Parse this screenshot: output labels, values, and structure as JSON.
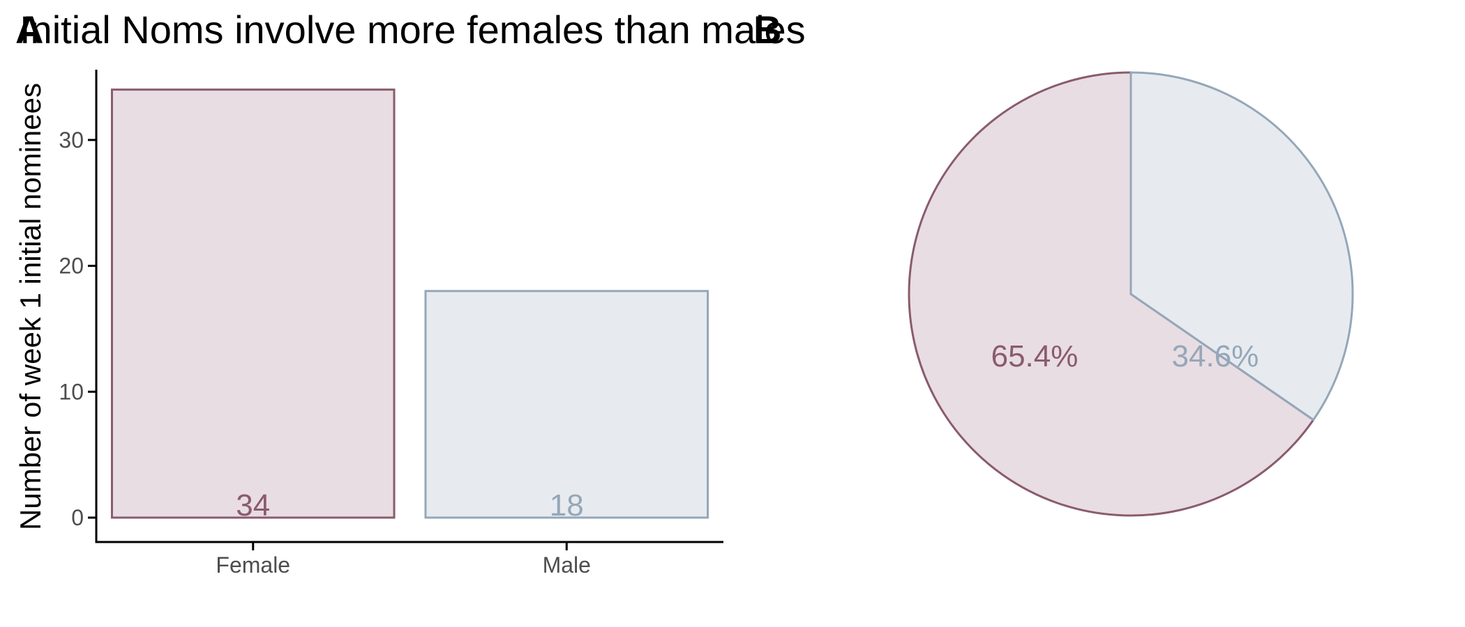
{
  "panel_a": {
    "tag": "A",
    "title": "Initial Noms involve more females than males"
  },
  "panel_b": {
    "tag": "B"
  },
  "colors": {
    "female_fill": "#e8dde2",
    "female_stroke": "#8a5b6e",
    "male_fill": "#e7ebef",
    "male_stroke": "#95a7b9",
    "axis": "#000000"
  },
  "chart_data": [
    {
      "type": "bar",
      "title": "Initial Noms involve more females than males",
      "xlabel": "",
      "ylabel": "Number of week 1 initial nominees",
      "categories": [
        "Female",
        "Male"
      ],
      "values": [
        34,
        18
      ],
      "data_labels": [
        "34",
        "18"
      ],
      "yticks": [
        0,
        10,
        20,
        30
      ],
      "ylim": [
        0,
        35.7
      ],
      "grid": false,
      "legend": "none"
    },
    {
      "type": "pie",
      "categories": [
        "Female",
        "Male"
      ],
      "values": [
        34,
        18
      ],
      "labels": [
        "65.4%",
        "34.6%"
      ],
      "start": "12 o'clock",
      "direction": "Male clockwise from top, Female counter-clockwise"
    }
  ]
}
